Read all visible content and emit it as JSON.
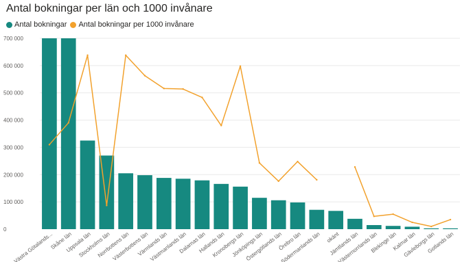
{
  "chart_data": {
    "type": "bar",
    "title": "Antal bokningar per län och 1000 invånare",
    "xlabel": "",
    "ylabel": "",
    "ylim": [
      0,
      700000
    ],
    "yticks": [
      {
        "value": 0,
        "label": "0"
      },
      {
        "value": 100000,
        "label": "100 000"
      },
      {
        "value": 200000,
        "label": "200 000"
      },
      {
        "value": 300000,
        "label": "300 000"
      },
      {
        "value": 400000,
        "label": "400 000"
      },
      {
        "value": 500000,
        "label": "500 000"
      },
      {
        "value": 600000,
        "label": "600 000"
      },
      {
        "value": 700000,
        "label": "700 000"
      }
    ],
    "grid": true,
    "legend_position": "top-left",
    "categories": [
      "Västra Götalands...",
      "Skåne län",
      "Uppsala län",
      "Stockholms län",
      "Norrbottens län",
      "Västerbottens län",
      "Värmlands län",
      "Västmanlands län",
      "Dalarnas län",
      "Hallands län",
      "Kronobergs län",
      "Jönköpings län",
      "Östergötlands län",
      "Örebro län",
      "Södermanlands län",
      "okänt",
      "Jämtlands län",
      "Västernorrlands län",
      "Blekinge län",
      "Kalmar län",
      "Gävleborgs län",
      "Gotlands län"
    ],
    "series": [
      {
        "name": "Antal bokningar",
        "kind": "bar",
        "color": "#168980",
        "values": [
          700000,
          700000,
          325000,
          270000,
          205000,
          198000,
          188000,
          185000,
          179000,
          166000,
          156000,
          115000,
          106000,
          98000,
          71000,
          67000,
          38000,
          15000,
          12000,
          9000,
          3000,
          3000
        ]
      },
      {
        "name": "Antal bokningar per 1000 invånare",
        "kind": "line",
        "color": "#F2A12C",
        "values": [
          310000,
          390000,
          638000,
          87000,
          638000,
          563000,
          516000,
          514000,
          483000,
          380000,
          598000,
          243000,
          176000,
          248000,
          181000,
          null,
          228000,
          47000,
          55000,
          25000,
          10000,
          35000
        ]
      }
    ]
  }
}
